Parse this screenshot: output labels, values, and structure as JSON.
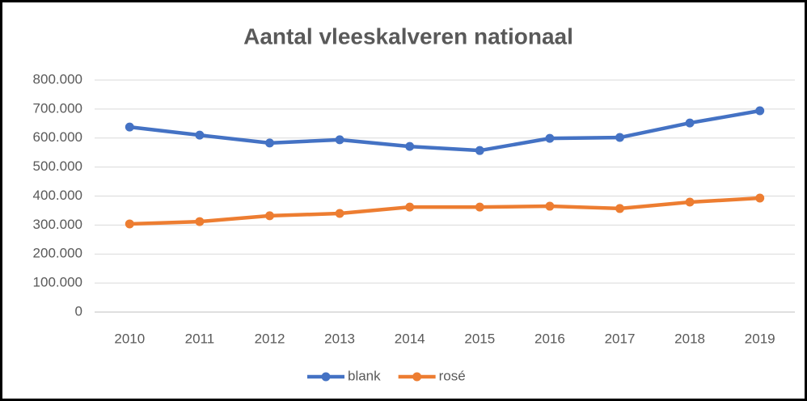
{
  "chart_data": {
    "type": "line",
    "title": "Aantal vleeskalveren nationaal",
    "categories": [
      "2010",
      "2011",
      "2012",
      "2013",
      "2014",
      "2015",
      "2016",
      "2017",
      "2018",
      "2019"
    ],
    "series": [
      {
        "name": "blank",
        "color": "#4472c4",
        "values": [
          638000,
          610000,
          583000,
          594000,
          571000,
          557000,
          599000,
          602000,
          652000,
          694000
        ]
      },
      {
        "name": "rosé",
        "color": "#ed7d31",
        "values": [
          304000,
          312000,
          332000,
          340000,
          362000,
          362000,
          365000,
          357000,
          379000,
          393000
        ]
      }
    ],
    "ylim": [
      0,
      800000
    ],
    "yticks": [
      0,
      {
        "value": 100000,
        "label": "100.000"
      },
      {
        "value": 200000,
        "label": "200.000"
      },
      {
        "value": 300000,
        "label": "300.000"
      },
      {
        "value": 400000,
        "label": "400.000"
      },
      {
        "value": 500000,
        "label": "500.000"
      },
      {
        "value": 600000,
        "label": "600.000"
      },
      {
        "value": 700000,
        "label": "700.000"
      },
      {
        "value": 800000,
        "label": "800.000"
      }
    ],
    "grid": true,
    "legend": "bottom"
  }
}
